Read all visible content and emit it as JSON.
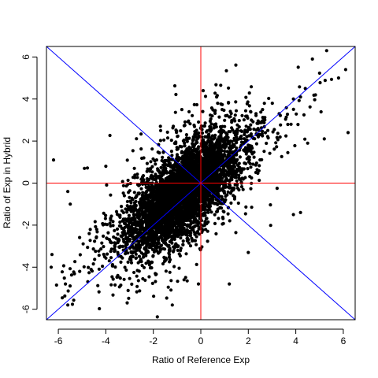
{
  "chart_data": {
    "type": "scatter",
    "title": "",
    "xlabel": "Ratio of Reference Exp",
    "ylabel": "Ratio of Exp in Hybrid",
    "xlim": [
      -6.5,
      6.5
    ],
    "ylim": [
      -6.5,
      6.5
    ],
    "xticks": [
      -6,
      -4,
      -2,
      0,
      2,
      4,
      6
    ],
    "yticks": [
      -6,
      -4,
      -2,
      0,
      2,
      4,
      6
    ],
    "xtick_labels": [
      "-6",
      "-4",
      "-2",
      "0",
      "2",
      "4",
      "6"
    ],
    "ytick_labels": [
      "-6",
      "-4",
      "-2",
      "0",
      "2",
      "4",
      "6"
    ],
    "grid": false,
    "point_color": "#000000",
    "n_points_generated": 5000,
    "reference_lines": [
      {
        "name": "y-equals-x",
        "slope": 1,
        "intercept": 0,
        "color": "#0000ff"
      },
      {
        "name": "y-equals-minus-x",
        "slope": -1,
        "intercept": 0,
        "color": "#0000ff"
      },
      {
        "name": "horizontal-zero",
        "orientation": "horizontal",
        "value": 0,
        "color": "#ff0000"
      },
      {
        "name": "vertical-zero",
        "orientation": "vertical",
        "value": 0,
        "color": "#ff0000"
      }
    ],
    "points_sample": [
      [
        -6.3,
        -4.0
      ],
      [
        -5.6,
        -5.8
      ],
      [
        -5.7,
        -4.8
      ],
      [
        -5.1,
        -4.2
      ],
      [
        -4.4,
        -2.6
      ],
      [
        -4.9,
        0.7
      ],
      [
        -4.0,
        0.8
      ],
      [
        -3.1,
        -5.7
      ],
      [
        -1.2,
        -5.8
      ],
      [
        -0.6,
        -2.0
      ],
      [
        0.1,
        4.4
      ],
      [
        0.9,
        3.5
      ],
      [
        1.3,
        2.9
      ],
      [
        2.6,
        3.5
      ],
      [
        3.3,
        3.3
      ],
      [
        3.9,
        4.0
      ],
      [
        4.2,
        4.1
      ],
      [
        4.4,
        4.5
      ],
      [
        4.7,
        5.9
      ],
      [
        5.3,
        6.3
      ],
      [
        5.8,
        5.0
      ],
      [
        6.1,
        5.4
      ],
      [
        6.2,
        2.4
      ],
      [
        5.2,
        2.1
      ],
      [
        4.5,
        1.9
      ],
      [
        3.8,
        2.8
      ],
      [
        4.2,
        -1.4
      ],
      [
        3.9,
        -1.5
      ],
      [
        2.0,
        -3.3
      ],
      [
        1.2,
        -4.8
      ],
      [
        -0.1,
        -4.8
      ],
      [
        -0.8,
        3.5
      ],
      [
        -1.7,
        2.7
      ],
      [
        -2.4,
        1.2
      ],
      [
        -2.8,
        0.7
      ],
      [
        -3.5,
        -3.3
      ],
      [
        -4.7,
        -2.4
      ],
      [
        -5.5,
        -1.0
      ],
      [
        -6.2,
        1.1
      ],
      [
        -5.6,
        -0.4
      ],
      [
        1.5,
        2.2
      ],
      [
        0.6,
        0.7
      ],
      [
        -0.4,
        -0.5
      ],
      [
        -1.6,
        -1.2
      ],
      [
        -2.2,
        -1.8
      ],
      [
        -1.0,
        0.4
      ],
      [
        0.4,
        -1.1
      ],
      [
        1.0,
        1.3
      ],
      [
        2.2,
        0.9
      ],
      [
        -3.0,
        -2.5
      ]
    ]
  }
}
